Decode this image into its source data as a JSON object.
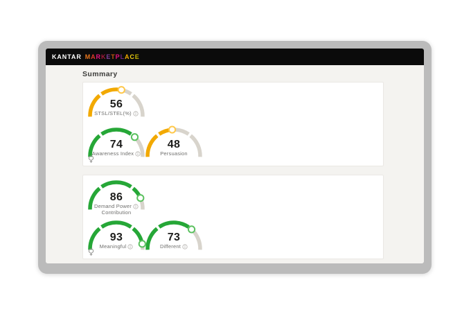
{
  "window": {
    "brand": {
      "primary": "KANTAR",
      "secondary": "MARKETPLACE",
      "secondary_letter_colors": [
        "#E8761C",
        "#E03A2B",
        "#E5127D",
        "#A31A3C",
        "#7D3F98",
        "#C75B12",
        "#E5127D",
        "#6E2585",
        "#F2A900",
        "#F2D117",
        "#C4B400"
      ]
    }
  },
  "page": {
    "title": "Summary"
  },
  "theme": {
    "amber": "#F2A900",
    "amber_ring": "#FFC84A",
    "green": "#26A737",
    "green_ring": "#5BC15F",
    "track": "#D8D4CC",
    "bezel": "#BBBBBB",
    "header_bg": "#0B0B0B",
    "content_bg": "#F4F3F0",
    "card_bg": "#FFFFFF",
    "value_color": "#1D1D1B",
    "label_color": "#6F6F6D",
    "title_color": "#3C3C3A",
    "info_icon_color": "#B3B1AD",
    "insight_icon_color": "#8F8F8D"
  },
  "gauge_scale": {
    "min": 0,
    "max": 100,
    "segment_boundaries": [
      30,
      70
    ],
    "start_angle": 182,
    "end_angle": -2
  },
  "cards": [
    {
      "name": "summary-top",
      "insight_icon": "lightbulb-icon",
      "gauges": [
        {
          "id": "stsl-stel",
          "value": "56",
          "label_lines": [
            "STSL/STEL(%)"
          ],
          "color": "amber",
          "info": true,
          "row": 0,
          "col": 0
        },
        {
          "id": "awareness-index",
          "value": "74",
          "label_lines": [
            "Awareness Index"
          ],
          "color": "green",
          "info": true,
          "row": 1,
          "col": 0
        },
        {
          "id": "persuasion",
          "value": "48",
          "label_lines": [
            "Persuasion"
          ],
          "color": "amber",
          "info": false,
          "row": 1,
          "col": 1
        }
      ]
    },
    {
      "name": "summary-bottom",
      "insight_icon": "lightbulb-icon",
      "gauges": [
        {
          "id": "demand-power-contribution",
          "value": "86",
          "label_lines": [
            "Demand Power",
            "Contribution"
          ],
          "color": "green",
          "info": true,
          "row": 0,
          "col": 0
        },
        {
          "id": "meaningful",
          "value": "93",
          "label_lines": [
            "Meaningful"
          ],
          "color": "green",
          "info": true,
          "row": 1,
          "col": 0
        },
        {
          "id": "different",
          "value": "73",
          "label_lines": [
            "Different"
          ],
          "color": "green",
          "info": true,
          "row": 1,
          "col": 1
        }
      ]
    }
  ],
  "chart_data": [
    {
      "type": "gauge",
      "title": "STSL/STEL(%)",
      "value": 56,
      "range": [
        0,
        100
      ],
      "band_boundaries": [
        30,
        70
      ],
      "color": "amber"
    },
    {
      "type": "gauge",
      "title": "Awareness Index",
      "value": 74,
      "range": [
        0,
        100
      ],
      "band_boundaries": [
        30,
        70
      ],
      "color": "green"
    },
    {
      "type": "gauge",
      "title": "Persuasion",
      "value": 48,
      "range": [
        0,
        100
      ],
      "band_boundaries": [
        30,
        70
      ],
      "color": "amber"
    },
    {
      "type": "gauge",
      "title": "Demand Power Contribution",
      "value": 86,
      "range": [
        0,
        100
      ],
      "band_boundaries": [
        30,
        70
      ],
      "color": "green"
    },
    {
      "type": "gauge",
      "title": "Meaningful",
      "value": 93,
      "range": [
        0,
        100
      ],
      "band_boundaries": [
        30,
        70
      ],
      "color": "green"
    },
    {
      "type": "gauge",
      "title": "Different",
      "value": 73,
      "range": [
        0,
        100
      ],
      "band_boundaries": [
        30,
        70
      ],
      "color": "green"
    }
  ]
}
